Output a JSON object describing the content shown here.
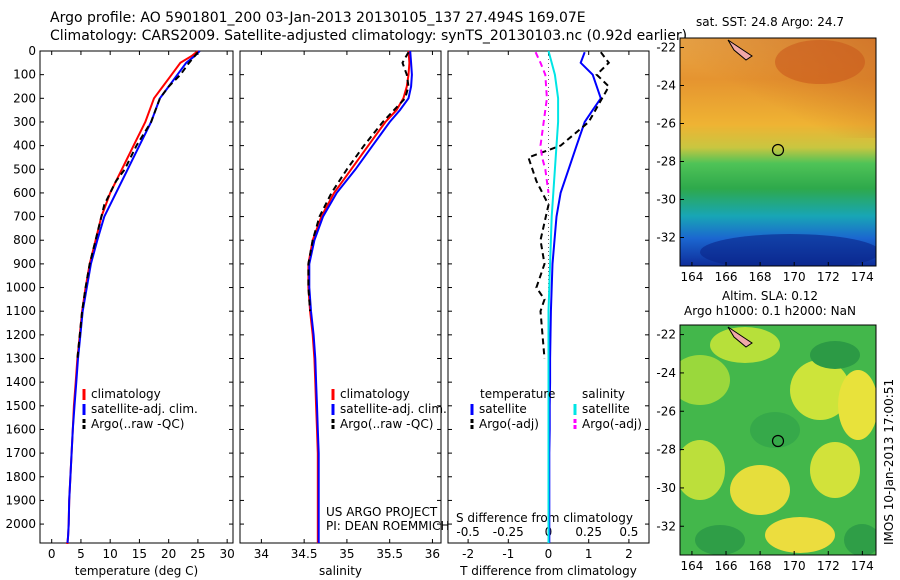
{
  "header": {
    "line1": "Argo profile: AO 5901801_200 03-Jan-2013 20130105_137 27.494S 169.07E",
    "line2": "Climatology: CARS2009. Satellite-adjusted climatology: synTS_20130103.nc (0.92d earlier)"
  },
  "colors": {
    "climatology": "#ff0000",
    "satellite": "#0000ff",
    "argo": "#000000",
    "salt_sat": "#00e5e5",
    "salt_argo": "#ff00ff"
  },
  "chart_data": [
    {
      "type": "line",
      "id": "temperature-profile",
      "xlabel": "temperature (deg C)",
      "ylabel": "",
      "xlim": [
        -2,
        31
      ],
      "ylim": [
        2080,
        0
      ],
      "xticks": [
        0,
        5,
        10,
        15,
        20,
        25,
        30
      ],
      "yticks": [
        0,
        100,
        200,
        300,
        400,
        500,
        600,
        700,
        800,
        900,
        1000,
        1100,
        1200,
        1300,
        1400,
        1500,
        1600,
        1700,
        1800,
        1900,
        2000
      ],
      "legend": {
        "position": "lower-middle",
        "entries": [
          "climatology",
          "satellite-adj. clim.",
          "Argo(..raw -QC)"
        ]
      },
      "series": [
        {
          "name": "climatology",
          "color": "#ff0000",
          "dash": "",
          "x": [
            25,
            24,
            22,
            20.5,
            19,
            17.5,
            16,
            14,
            12,
            10,
            8.5,
            7.5,
            6.5,
            5.8,
            5.2,
            4.8,
            4.4,
            4.1,
            3.8,
            3.6,
            3.4,
            3.2,
            3.0,
            2.9,
            2.8,
            2.7,
            2.6,
            2.55,
            2.5
          ],
          "y": [
            0,
            20,
            50,
            100,
            150,
            200,
            300,
            400,
            500,
            600,
            700,
            800,
            900,
            1000,
            1100,
            1200,
            1300,
            1400,
            1500,
            1600,
            1700,
            1800,
            1900,
            2000,
            2050,
            2080,
            2080,
            2080,
            2080
          ]
        },
        {
          "name": "satellite-adj. clim.",
          "color": "#0000ff",
          "dash": "",
          "x": [
            25.3,
            24.5,
            23,
            21.5,
            20,
            18.5,
            17,
            15,
            13,
            11,
            9,
            7.8,
            6.7,
            6,
            5.3,
            4.9,
            4.5,
            4.2,
            3.9,
            3.6,
            3.4,
            3.2,
            3.0,
            2.9,
            2.8,
            2.7
          ],
          "y": [
            0,
            20,
            50,
            100,
            150,
            200,
            300,
            400,
            500,
            600,
            700,
            800,
            900,
            1000,
            1100,
            1200,
            1300,
            1400,
            1500,
            1600,
            1700,
            1800,
            1900,
            2000,
            2050,
            2080
          ]
        },
        {
          "name": "Argo(..raw -QC)",
          "color": "#000000",
          "dash": "6,4",
          "x": [
            25,
            24.5,
            23.5,
            22,
            20,
            18.5,
            17,
            14.5,
            12.5,
            11,
            9,
            7.5,
            6.5,
            5.8,
            5.2,
            4.8,
            4.4
          ],
          "y": [
            5,
            20,
            50,
            100,
            150,
            200,
            300,
            400,
            500,
            550,
            650,
            800,
            900,
            1000,
            1100,
            1200,
            1300
          ]
        }
      ]
    },
    {
      "type": "line",
      "id": "salinity-profile",
      "xlabel": "salinity",
      "ylabel": "",
      "xlim": [
        33.75,
        36.1
      ],
      "ylim": [
        2080,
        0
      ],
      "xticks": [
        34,
        34.5,
        35,
        35.5,
        36
      ],
      "legend": {
        "position": "lower-middle",
        "entries": [
          "climatology",
          "satellite-adj. clim.",
          "Argo(..raw -QC)"
        ]
      },
      "series": [
        {
          "name": "climatology",
          "color": "#ff0000",
          "dash": "",
          "x": [
            35.72,
            35.73,
            35.72,
            35.7,
            35.66,
            35.58,
            35.45,
            35.25,
            35.05,
            34.85,
            34.7,
            34.6,
            34.55,
            34.55,
            34.57,
            34.6,
            34.62,
            34.63,
            34.64,
            34.65,
            34.66,
            34.66,
            34.66,
            34.66
          ],
          "y": [
            0,
            50,
            100,
            150,
            200,
            250,
            300,
            400,
            500,
            600,
            700,
            800,
            900,
            1000,
            1100,
            1200,
            1300,
            1400,
            1500,
            1600,
            1700,
            1800,
            1900,
            2080
          ]
        },
        {
          "name": "satellite-adj. clim.",
          "color": "#0000ff",
          "dash": "",
          "x": [
            35.74,
            35.75,
            35.76,
            35.75,
            35.72,
            35.62,
            35.5,
            35.3,
            35.1,
            34.88,
            34.72,
            34.62,
            34.56,
            34.56,
            34.58,
            34.61,
            34.63,
            34.64,
            34.65,
            34.66,
            34.67,
            34.67,
            34.67,
            34.67
          ],
          "y": [
            0,
            50,
            100,
            150,
            200,
            250,
            300,
            400,
            500,
            600,
            700,
            800,
            900,
            1000,
            1100,
            1200,
            1300,
            1400,
            1500,
            1600,
            1700,
            1800,
            1900,
            2080
          ]
        },
        {
          "name": "Argo(..raw -QC)",
          "color": "#000000",
          "dash": "6,4",
          "x": [
            35.72,
            35.65,
            35.7,
            35.72,
            35.68,
            35.55,
            35.42,
            35.2,
            35.0,
            34.82,
            34.68,
            34.6,
            34.55,
            34.55,
            34.57
          ],
          "y": [
            5,
            50,
            100,
            150,
            200,
            250,
            300,
            400,
            500,
            600,
            700,
            800,
            900,
            1000,
            1100
          ]
        }
      ]
    },
    {
      "type": "line",
      "id": "difference-profile",
      "xlabel": "T difference from climatology",
      "xlabel_top": "S difference from climatology",
      "xlim": [
        -2.5,
        2.5
      ],
      "ylim": [
        2080,
        0
      ],
      "xticks": [
        -2,
        -1,
        0,
        1,
        2
      ],
      "xticks_s": [
        {
          "v": -0.5,
          "label": "-0.5"
        },
        {
          "v": -0.25,
          "label": "-0.25"
        },
        {
          "v": 0,
          "label": "0"
        },
        {
          "v": 0.25,
          "label": "0.25"
        },
        {
          "v": 0.5,
          "label": "0.5"
        }
      ],
      "s_scale": 4,
      "legend_left_title": "temperature",
      "legend_right_title": "salinity",
      "series": [
        {
          "name": "satellite",
          "group": "temperature",
          "color": "#0000ff",
          "dash": "",
          "x": [
            0.9,
            0.8,
            1.1,
            1.3,
            1.1,
            0.9,
            0.7,
            0.5,
            0.3,
            0.2,
            0.15,
            0.1,
            0.08,
            0.06,
            0.05,
            0.04,
            0.04,
            0.03,
            0.03,
            0.02,
            0.02,
            0.02,
            0.02
          ],
          "y": [
            5,
            50,
            100,
            200,
            250,
            300,
            400,
            500,
            600,
            700,
            800,
            900,
            1000,
            1100,
            1200,
            1300,
            1400,
            1500,
            1600,
            1700,
            1800,
            1900,
            2080
          ]
        },
        {
          "name": "Argo(-adj)",
          "group": "temperature",
          "color": "#000000",
          "dash": "6,4",
          "x": [
            1.3,
            1.5,
            1.2,
            1.5,
            1.0,
            0.3,
            -0.5,
            -0.3,
            0.0,
            -0.2,
            -0.1,
            -0.3,
            -0.1,
            -0.2,
            -0.1
          ],
          "y": [
            5,
            50,
            100,
            150,
            300,
            400,
            450,
            550,
            650,
            800,
            900,
            1000,
            1050,
            1100,
            1300
          ]
        },
        {
          "name": "satellite",
          "group": "salinity",
          "color": "#00e5e5",
          "dash": "",
          "x": [
            0.0,
            0.02,
            0.04,
            0.06,
            0.06,
            0.05,
            0.04,
            0.03,
            0.02,
            0.015,
            0.01,
            0.005,
            0.0,
            0.0,
            0.0,
            0.0,
            0.0,
            0.0,
            0.0,
            0.0
          ],
          "y": [
            0,
            50,
            100,
            200,
            300,
            400,
            500,
            600,
            700,
            800,
            900,
            1000,
            1100,
            1200,
            1300,
            1400,
            1500,
            1600,
            1800,
            2080
          ]
        },
        {
          "name": "Argo(-adj)",
          "group": "salinity",
          "color": "#ff00ff",
          "dash": "6,4",
          "x": [
            -0.08,
            -0.05,
            -0.02,
            -0.01,
            -0.03,
            -0.05,
            -0.04,
            -0.02,
            0.0
          ],
          "y": [
            5,
            50,
            100,
            200,
            300,
            400,
            450,
            500,
            600
          ]
        }
      ]
    },
    {
      "type": "heatmap",
      "id": "sst-map",
      "title": "sat. SST: 24.8  Argo: 24.7",
      "xlim": [
        163.3,
        174.8
      ],
      "ylim": [
        -33.5,
        -21.5
      ],
      "xticks": [
        164,
        166,
        168,
        170,
        172,
        174
      ],
      "yticks": [
        -22,
        -24,
        -26,
        -28,
        -30,
        -32
      ],
      "argo_position": {
        "lon": 169.07,
        "lat": -27.494
      }
    },
    {
      "type": "heatmap",
      "id": "sla-map",
      "title_line1": "Altim. SLA: 0.12",
      "title_line2": "Argo h1000: 0.1 h2000: NaN",
      "xlim": [
        163.3,
        174.8
      ],
      "ylim": [
        -33.5,
        -21.5
      ],
      "xticks": [
        164,
        166,
        168,
        170,
        172,
        174
      ],
      "yticks": [
        -22,
        -24,
        -26,
        -28,
        -30,
        -32
      ],
      "argo_position": {
        "lon": 169.07,
        "lat": -27.494
      }
    }
  ],
  "legends": {
    "temperature": [
      "climatology",
      "satellite-adj. clim.",
      "Argo(..raw -QC)"
    ],
    "salinity": [
      "climatology",
      "satellite-adj. clim.",
      "Argo(..raw -QC)"
    ],
    "diff_left": [
      "satellite",
      "Argo(-adj)"
    ],
    "diff_right": [
      "satellite",
      "Argo(-adj)"
    ]
  },
  "credits": {
    "project": "US ARGO PROJECT",
    "pi": "PI: DEAN ROEMMICH"
  },
  "footer_vertical": "IMOS 10-Jan-2013 17:00:51"
}
